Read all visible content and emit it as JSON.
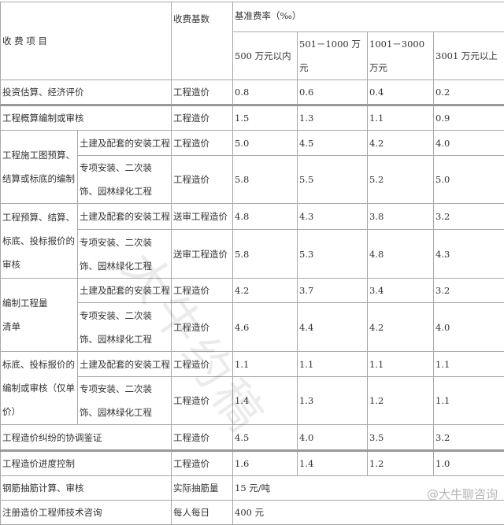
{
  "header": {
    "item": "收 费 项 目",
    "base": "收费基数",
    "rate": "基准费率（‰）",
    "tiers": [
      "500 万元以内",
      "501－1000 万元",
      "1001－3000 万元",
      "3001 万元以上"
    ]
  },
  "sub": {
    "a": "土建及配套的安装工程",
    "b": "专项安装、二次装饰、园林绿化工程"
  },
  "rows": [
    {
      "item": "投资估算、经济评价",
      "base": "工程造价",
      "v": [
        "0.8",
        "0.6",
        "0.4",
        "0.2"
      ]
    },
    {
      "item": "工程概算编制或审核",
      "base": "工程造价",
      "v": [
        "1.5",
        "1.3",
        "1.1",
        "0.9"
      ]
    },
    {
      "item": "工程施工图预算、结算或标底的编制",
      "a": {
        "base": "工程造价",
        "v": [
          "5.0",
          "4.5",
          "4.2",
          "4.0"
        ]
      },
      "b": {
        "base": "工程造价",
        "v": [
          "5.8",
          "5.5",
          "5.2",
          "5.0"
        ]
      }
    },
    {
      "item": "工程预算、结算、标底、投标报价的审核",
      "a": {
        "base": "送审工程造价",
        "v": [
          "4.8",
          "4.3",
          "3.8",
          "3.2"
        ]
      },
      "b": {
        "base": "送审工程造价",
        "v": [
          "5.8",
          "5.3",
          "4.8",
          "4.3"
        ]
      }
    },
    {
      "item": "编制工程量清单",
      "a": {
        "base": "工程造价",
        "v": [
          "4.2",
          "3.7",
          "3.4",
          "3.2"
        ]
      },
      "b": {
        "base": "工程造价",
        "v": [
          "4.6",
          "4.4",
          "4.2",
          "4.0"
        ]
      }
    },
    {
      "item": "标底、投标报价的编制或审核（仅单价）",
      "a": {
        "base": "工程造价",
        "v": [
          "1.1",
          "1.1",
          "1.1",
          "1.1"
        ]
      },
      "b": {
        "base": "工程造价",
        "v": [
          "1.4",
          "1.3",
          "1.2",
          "1.1"
        ]
      }
    },
    {
      "item": "工程造价纠纷的协调鉴证",
      "base": "工程造价",
      "v": [
        "4.5",
        "4.0",
        "3.5",
        "3.2"
      ]
    },
    {
      "item": "工程造价进度控制",
      "base": "工程造价",
      "v": [
        "1.6",
        "1.4",
        "1.2",
        "1.0"
      ]
    },
    {
      "item": "钢筋抽筋计算、审核",
      "base": "实际抽筋量",
      "fee": "15 元/吨"
    },
    {
      "item": "注册造价工程师技术咨询",
      "base": "每人每日",
      "fee": "400 元"
    }
  ],
  "watermark": "大牛约稿",
  "credit": "@大牛聊咨询"
}
